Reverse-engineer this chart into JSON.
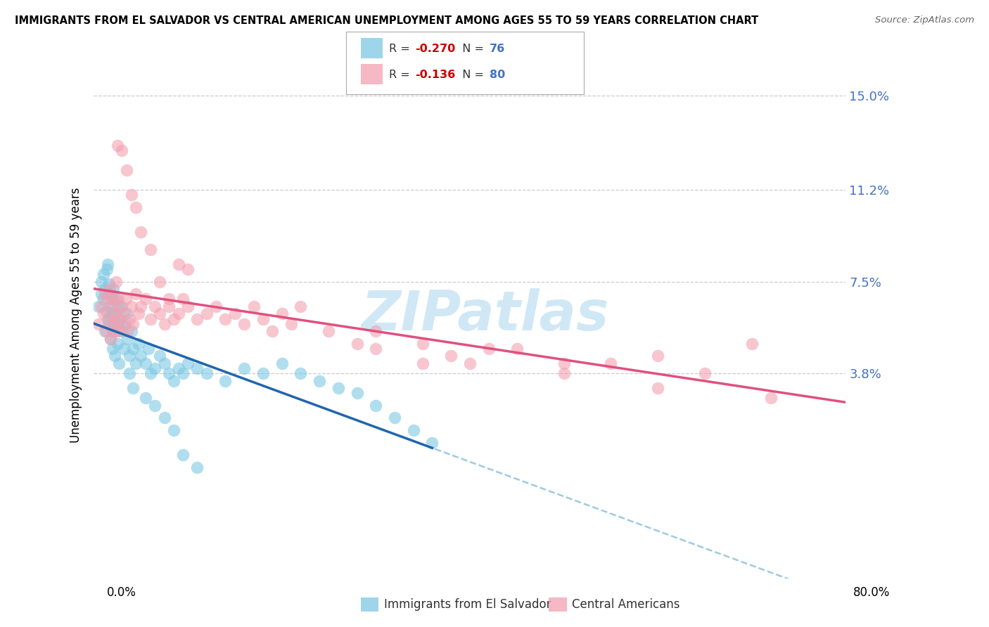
{
  "title": "IMMIGRANTS FROM EL SALVADOR VS CENTRAL AMERICAN UNEMPLOYMENT AMONG AGES 55 TO 59 YEARS CORRELATION CHART",
  "source": "Source: ZipAtlas.com",
  "ylabel": "Unemployment Among Ages 55 to 59 years",
  "ytick_labels": [
    "15.0%",
    "11.2%",
    "7.5%",
    "3.8%"
  ],
  "ytick_values": [
    0.15,
    0.112,
    0.075,
    0.038
  ],
  "xmin": 0.0,
  "xmax": 0.8,
  "ymin": -0.045,
  "ymax": 0.168,
  "legend_r1": "-0.270",
  "legend_n1": "76",
  "legend_r2": "-0.136",
  "legend_n2": "80",
  "color_blue": "#7ec8e3",
  "color_pink": "#f4a0b0",
  "trendline_blue_color": "#2166ac",
  "trendline_pink_color": "#e05080",
  "trendline_blue_dashed_color": "#9ecae1",
  "watermark_text": "ZIPatlas",
  "watermark_color": "#d0e8f5",
  "blue_scatter_x": [
    0.005,
    0.008,
    0.008,
    0.01,
    0.01,
    0.012,
    0.012,
    0.013,
    0.014,
    0.015,
    0.015,
    0.016,
    0.016,
    0.017,
    0.018,
    0.018,
    0.019,
    0.02,
    0.02,
    0.02,
    0.021,
    0.021,
    0.022,
    0.022,
    0.023,
    0.024,
    0.025,
    0.025,
    0.026,
    0.027,
    0.028,
    0.03,
    0.03,
    0.032,
    0.033,
    0.035,
    0.036,
    0.038,
    0.04,
    0.042,
    0.045,
    0.048,
    0.05,
    0.055,
    0.058,
    0.06,
    0.065,
    0.07,
    0.075,
    0.08,
    0.085,
    0.09,
    0.095,
    0.1,
    0.11,
    0.12,
    0.14,
    0.16,
    0.18,
    0.2,
    0.22,
    0.24,
    0.26,
    0.28,
    0.3,
    0.32,
    0.34,
    0.36,
    0.038,
    0.042,
    0.055,
    0.065,
    0.075,
    0.085,
    0.095,
    0.11
  ],
  "blue_scatter_y": [
    0.065,
    0.07,
    0.075,
    0.068,
    0.078,
    0.055,
    0.072,
    0.063,
    0.08,
    0.06,
    0.082,
    0.058,
    0.074,
    0.065,
    0.052,
    0.07,
    0.062,
    0.048,
    0.055,
    0.068,
    0.058,
    0.072,
    0.045,
    0.062,
    0.055,
    0.068,
    0.05,
    0.065,
    0.058,
    0.042,
    0.06,
    0.055,
    0.065,
    0.048,
    0.058,
    0.062,
    0.052,
    0.045,
    0.055,
    0.048,
    0.042,
    0.05,
    0.045,
    0.042,
    0.048,
    0.038,
    0.04,
    0.045,
    0.042,
    0.038,
    0.035,
    0.04,
    0.038,
    0.042,
    0.04,
    0.038,
    0.035,
    0.04,
    0.038,
    0.042,
    0.038,
    0.035,
    0.032,
    0.03,
    0.025,
    0.02,
    0.015,
    0.01,
    0.038,
    0.032,
    0.028,
    0.025,
    0.02,
    0.015,
    0.005,
    0.0
  ],
  "pink_scatter_x": [
    0.005,
    0.008,
    0.01,
    0.012,
    0.013,
    0.015,
    0.016,
    0.017,
    0.018,
    0.019,
    0.02,
    0.021,
    0.022,
    0.023,
    0.024,
    0.025,
    0.026,
    0.027,
    0.028,
    0.03,
    0.032,
    0.034,
    0.036,
    0.038,
    0.04,
    0.042,
    0.045,
    0.048,
    0.05,
    0.055,
    0.06,
    0.065,
    0.07,
    0.075,
    0.08,
    0.085,
    0.09,
    0.095,
    0.1,
    0.11,
    0.12,
    0.13,
    0.14,
    0.15,
    0.16,
    0.17,
    0.18,
    0.19,
    0.2,
    0.21,
    0.22,
    0.25,
    0.28,
    0.3,
    0.35,
    0.38,
    0.42,
    0.45,
    0.5,
    0.55,
    0.6,
    0.65,
    0.72,
    0.025,
    0.03,
    0.035,
    0.04,
    0.045,
    0.05,
    0.06,
    0.07,
    0.08,
    0.09,
    0.1,
    0.3,
    0.35,
    0.4,
    0.5,
    0.6,
    0.7
  ],
  "pink_scatter_y": [
    0.058,
    0.065,
    0.062,
    0.07,
    0.055,
    0.068,
    0.06,
    0.072,
    0.052,
    0.065,
    0.058,
    0.068,
    0.055,
    0.062,
    0.075,
    0.06,
    0.068,
    0.055,
    0.065,
    0.058,
    0.062,
    0.068,
    0.055,
    0.06,
    0.065,
    0.058,
    0.07,
    0.062,
    0.065,
    0.068,
    0.06,
    0.065,
    0.062,
    0.058,
    0.065,
    0.06,
    0.062,
    0.068,
    0.065,
    0.06,
    0.062,
    0.065,
    0.06,
    0.062,
    0.058,
    0.065,
    0.06,
    0.055,
    0.062,
    0.058,
    0.065,
    0.055,
    0.05,
    0.055,
    0.05,
    0.045,
    0.048,
    0.048,
    0.042,
    0.042,
    0.045,
    0.038,
    0.028,
    0.13,
    0.128,
    0.12,
    0.11,
    0.105,
    0.095,
    0.088,
    0.075,
    0.068,
    0.082,
    0.08,
    0.048,
    0.042,
    0.042,
    0.038,
    0.032,
    0.05
  ]
}
